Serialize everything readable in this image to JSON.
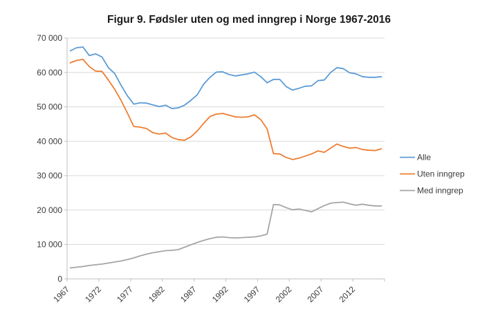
{
  "chart_data": {
    "type": "line",
    "title": "Figur 9. Fødsler uten og med inngrep i Norge 1967-2016",
    "xlabel": "",
    "ylabel": "",
    "ylim": [
      0,
      70000
    ],
    "y_tick_step": 10000,
    "grid": true,
    "legend_position": "right",
    "x": [
      1967,
      1968,
      1969,
      1970,
      1971,
      1972,
      1973,
      1974,
      1975,
      1976,
      1977,
      1978,
      1979,
      1980,
      1981,
      1982,
      1983,
      1984,
      1985,
      1986,
      1987,
      1988,
      1989,
      1990,
      1991,
      1992,
      1993,
      1994,
      1995,
      1996,
      1997,
      1998,
      1999,
      2000,
      2001,
      2002,
      2003,
      2004,
      2005,
      2006,
      2007,
      2008,
      2009,
      2010,
      2011,
      2012,
      2013,
      2014,
      2015,
      2016
    ],
    "x_tick_labels": [
      "1967",
      "1972",
      "1977",
      "1982",
      "1987",
      "1992",
      "1997",
      "2002",
      "2007",
      "2012"
    ],
    "y_tick_labels": [
      "0",
      "10 000",
      "20 000",
      "30 000",
      "40 000",
      "50 000",
      "60 000",
      "70 000"
    ],
    "series": [
      {
        "name": "Alle",
        "color": "#5B9BD5",
        "values": [
          66300,
          67200,
          67400,
          64900,
          65400,
          64500,
          61400,
          59700,
          56300,
          53200,
          50800,
          51200,
          51100,
          50600,
          50100,
          50500,
          49500,
          49700,
          50500,
          51900,
          53500,
          56600,
          58600,
          60100,
          60200,
          59400,
          59000,
          59300,
          59600,
          60100,
          58800,
          57000,
          58000,
          58000,
          55900,
          54900,
          55400,
          56000,
          56100,
          57600,
          57800,
          60000,
          61400,
          61100,
          59900,
          59600,
          58800,
          58600,
          58600,
          58800
        ]
      },
      {
        "name": "Uten inngrep",
        "color": "#ED7D31",
        "values": [
          62800,
          63500,
          63800,
          61700,
          60400,
          60300,
          57800,
          55100,
          51900,
          48200,
          44300,
          44100,
          43700,
          42500,
          42100,
          42400,
          41100,
          40500,
          40300,
          41300,
          43000,
          45200,
          47200,
          47900,
          48100,
          47600,
          47100,
          47000,
          47100,
          47700,
          46300,
          43600,
          36400,
          36300,
          35300,
          34700,
          35100,
          35700,
          36300,
          37200,
          36800,
          38000,
          39200,
          38500,
          38000,
          38200,
          37600,
          37400,
          37300,
          37800
        ]
      },
      {
        "name": "Med inngrep",
        "color": "#A5A5A5",
        "values": [
          3200,
          3400,
          3600,
          3900,
          4100,
          4300,
          4600,
          4900,
          5200,
          5600,
          6100,
          6700,
          7200,
          7600,
          7900,
          8200,
          8300,
          8500,
          9200,
          9900,
          10600,
          11200,
          11700,
          12100,
          12200,
          12000,
          11900,
          12000,
          12100,
          12200,
          12500,
          13000,
          21600,
          21500,
          20700,
          20100,
          20300,
          19900,
          19500,
          20400,
          21300,
          22000,
          22200,
          22300,
          21800,
          21400,
          21700,
          21400,
          21200,
          21200
        ]
      }
    ],
    "gridline_color": "#D9D9D9",
    "axis_color": "#BFBFBF"
  }
}
